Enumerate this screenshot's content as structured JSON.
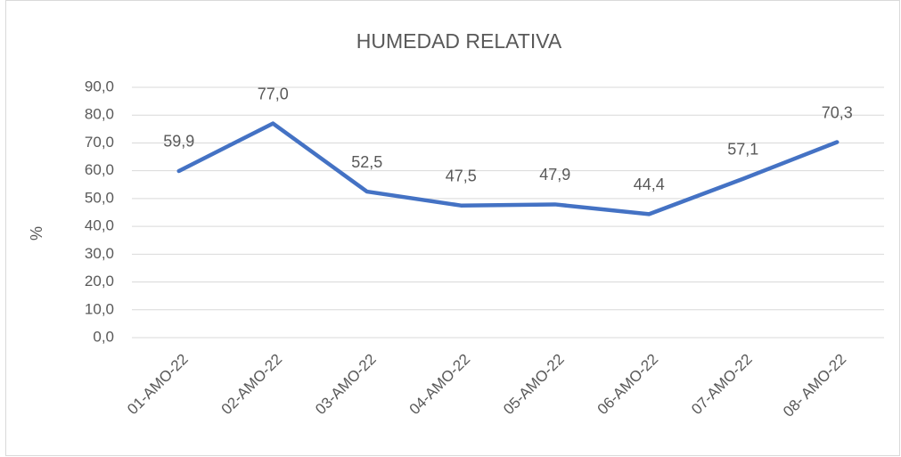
{
  "chart_data": {
    "type": "line",
    "title": "HUMEDAD RELATIVA",
    "y_label": "%",
    "categories": [
      "01-AMO-22",
      "02-AMO-22",
      "03-AMO-22",
      "04-AMO-22",
      "05-AMO-22",
      "06-AMO-22",
      "07-AMO-22",
      "08- AMO-22"
    ],
    "series": [
      {
        "name": "HUMEDAD RELATIVA",
        "color": "#4472c4",
        "values": [
          59.9,
          77.0,
          52.5,
          47.5,
          47.9,
          44.4,
          57.1,
          70.3
        ],
        "value_labels": [
          "59,9",
          "77,0",
          "52,5",
          "47,5",
          "47,9",
          "44,4",
          "57,1",
          "70,3"
        ]
      }
    ],
    "ylim": [
      0,
      90
    ],
    "yticks": [
      {
        "value": 0,
        "label": "0,0"
      },
      {
        "value": 10,
        "label": "10,0"
      },
      {
        "value": 20,
        "label": "20,0"
      },
      {
        "value": 30,
        "label": "30,0"
      },
      {
        "value": 40,
        "label": "40,0"
      },
      {
        "value": 50,
        "label": "50,0"
      },
      {
        "value": 60,
        "label": "60,0"
      },
      {
        "value": 70,
        "label": "70,0"
      },
      {
        "value": 80,
        "label": "80,0"
      },
      {
        "value": 90,
        "label": "90,0"
      }
    ],
    "grid": true
  }
}
